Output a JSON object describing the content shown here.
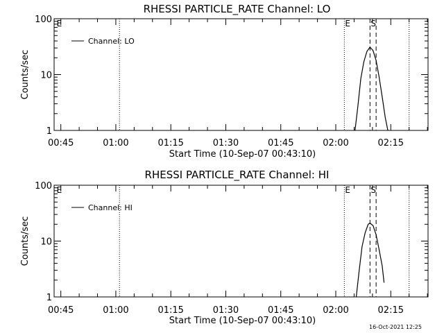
{
  "chart_data": [
    {
      "type": "line",
      "title": "RHESSI PARTICLE_RATE Channel: LO",
      "xlabel": "Start Time (10-Sep-07 00:43:10)",
      "ylabel": "Counts/sec",
      "yscale": "log",
      "ylim": [
        1,
        100
      ],
      "xlim": [
        "00:43:10",
        "02:25:10"
      ],
      "grid": false,
      "legend": "top-left",
      "x_ticks": [
        "00:45",
        "01:00",
        "01:15",
        "01:30",
        "01:45",
        "02:00",
        "02:15"
      ],
      "y_ticks": [
        "1",
        "10",
        "100"
      ],
      "series": [
        {
          "name": "Channel: LO",
          "x": [
            "02:05:10",
            "02:06:00",
            "02:06:50",
            "02:07:40",
            "02:08:30",
            "02:09:20",
            "02:10:10",
            "02:11:00",
            "02:11:50",
            "02:12:40",
            "02:13:30",
            "02:14:20"
          ],
          "y": [
            0.9,
            2.6,
            8.5,
            17.0,
            26.0,
            31.0,
            27.0,
            18.0,
            9.0,
            4.0,
            1.7,
            0.9
          ]
        }
      ],
      "annotations": [
        {
          "label": "E",
          "time": "00:43:40",
          "style": "none"
        },
        {
          "label": "",
          "time": "01:01:00",
          "style": "dotted"
        },
        {
          "label": "E",
          "time": "02:02:20",
          "style": "dotted"
        },
        {
          "label": "S",
          "time": "02:09:20",
          "style": "dashed"
        },
        {
          "label": "",
          "time": "02:11:00",
          "style": "dashed"
        },
        {
          "label": "",
          "time": "02:20:00",
          "style": "dotted"
        }
      ]
    },
    {
      "type": "line",
      "title": "RHESSI PARTICLE_RATE Channel: HI",
      "xlabel": "Start Time (10-Sep-07 00:43:10)",
      "ylabel": "Counts/sec",
      "yscale": "log",
      "ylim": [
        1,
        100
      ],
      "xlim": [
        "00:43:10",
        "02:25:10"
      ],
      "grid": false,
      "legend": "top-left",
      "x_ticks": [
        "00:45",
        "01:00",
        "01:15",
        "01:30",
        "01:45",
        "02:00",
        "02:15"
      ],
      "y_ticks": [
        "1",
        "10",
        "100"
      ],
      "series": [
        {
          "name": "Channel: HI",
          "x": [
            "02:05:30",
            "02:06:20",
            "02:07:10",
            "02:08:00",
            "02:08:50",
            "02:09:20",
            "02:10:10",
            "02:11:00",
            "02:11:50",
            "02:12:40",
            "02:13:10"
          ],
          "y": [
            0.9,
            2.8,
            8.0,
            14.0,
            20.0,
            21.0,
            19.0,
            13.0,
            7.0,
            3.6,
            1.8
          ]
        }
      ],
      "annotations": [
        {
          "label": "E",
          "time": "00:43:40",
          "style": "none"
        },
        {
          "label": "",
          "time": "01:01:00",
          "style": "dotted"
        },
        {
          "label": "E",
          "time": "02:02:20",
          "style": "dotted"
        },
        {
          "label": "S",
          "time": "02:09:20",
          "style": "dashed"
        },
        {
          "label": "",
          "time": "02:11:00",
          "style": "dashed"
        },
        {
          "label": "",
          "time": "02:20:00",
          "style": "dotted"
        }
      ]
    }
  ],
  "footer": {
    "timestamp": "16-Oct-2021 12:25"
  }
}
